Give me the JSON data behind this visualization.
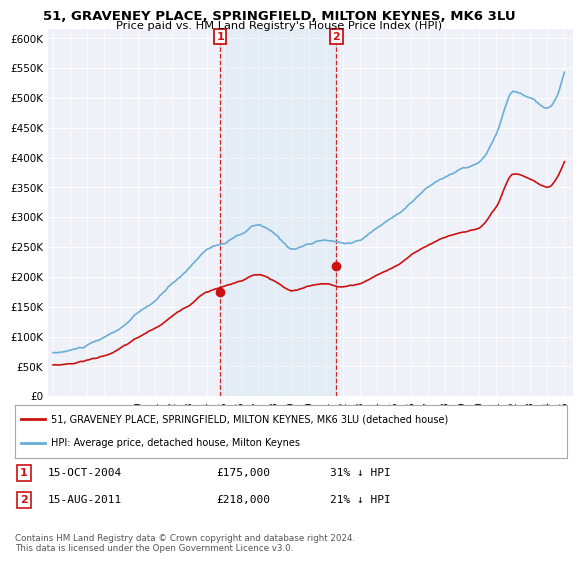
{
  "title1": "51, GRAVENEY PLACE, SPRINGFIELD, MILTON KEYNES, MK6 3LU",
  "title2": "Price paid vs. HM Land Registry's House Price Index (HPI)",
  "ylabel_ticks": [
    "£0",
    "£50K",
    "£100K",
    "£150K",
    "£200K",
    "£250K",
    "£300K",
    "£350K",
    "£400K",
    "£450K",
    "£500K",
    "£550K",
    "£600K"
  ],
  "ytick_values": [
    0,
    50000,
    100000,
    150000,
    200000,
    250000,
    300000,
    350000,
    400000,
    450000,
    500000,
    550000,
    600000
  ],
  "ylim": [
    0,
    615000
  ],
  "xlim_start": 1994.7,
  "xlim_end": 2025.5,
  "xtick_years": [
    1995,
    1996,
    1997,
    1998,
    1999,
    2000,
    2001,
    2002,
    2003,
    2004,
    2005,
    2006,
    2007,
    2008,
    2009,
    2010,
    2011,
    2012,
    2013,
    2014,
    2015,
    2016,
    2017,
    2018,
    2019,
    2020,
    2021,
    2022,
    2023,
    2024,
    2025
  ],
  "hpi_color": "#6aaed6",
  "hpi_fill_color": "#d4e6f5",
  "price_color": "#cc1111",
  "marker1_x": 2004.8,
  "marker1_y": 175000,
  "marker2_x": 2011.62,
  "marker2_y": 218000,
  "vline1_x": 2004.8,
  "vline2_x": 2011.62,
  "shade_alpha": 0.35,
  "legend_label1": "51, GRAVENEY PLACE, SPRINGFIELD, MILTON KEYNES, MK6 3LU (detached house)",
  "legend_label2": "HPI: Average price, detached house, Milton Keynes",
  "table_row1": [
    "1",
    "15-OCT-2004",
    "£175,000",
    "31% ↓ HPI"
  ],
  "table_row2": [
    "2",
    "15-AUG-2011",
    "£218,000",
    "21% ↓ HPI"
  ],
  "footer": "Contains HM Land Registry data © Crown copyright and database right 2024.\nThis data is licensed under the Open Government Licence v3.0.",
  "background_color": "#ffffff",
  "plot_bg_color": "#eef2f8"
}
